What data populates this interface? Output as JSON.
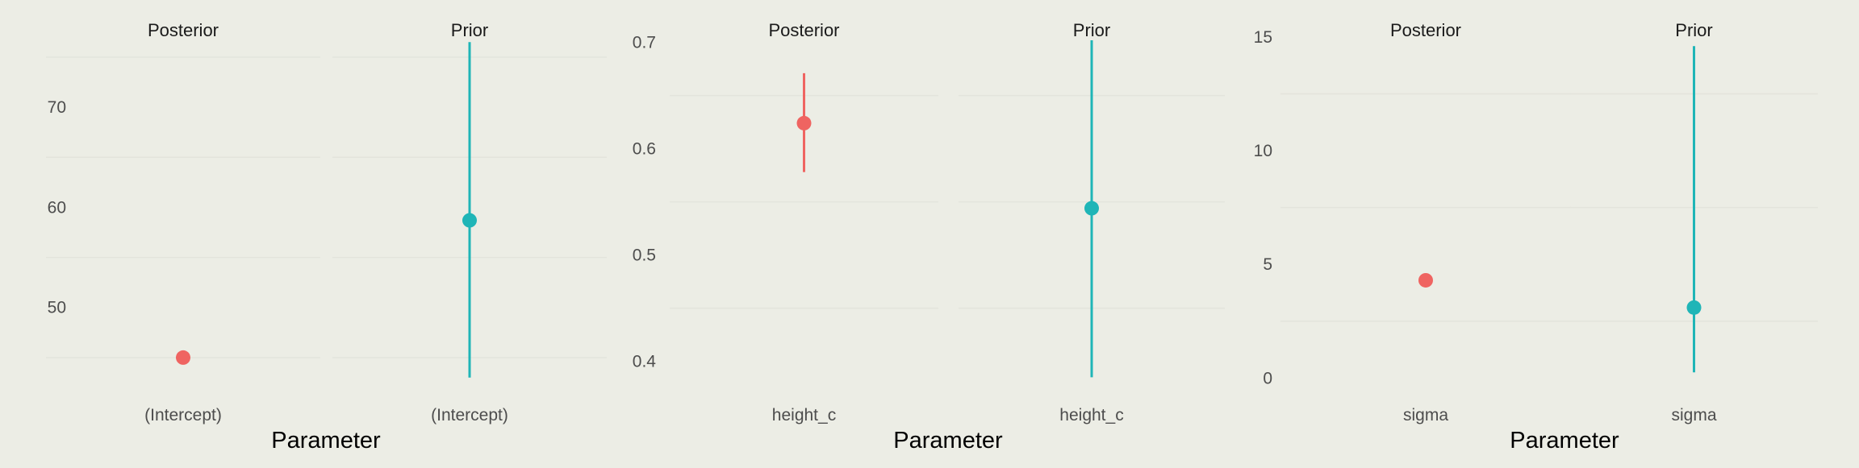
{
  "colors": {
    "background": "#ecede5",
    "grid": "#e3e4dc",
    "posterior": "#ef6461",
    "prior": "#1fb5b7"
  },
  "chart_data": [
    {
      "type": "pointrange",
      "xlabel": "Parameter",
      "ylim": [
        42.5,
        77
      ],
      "y_ticks": [
        50,
        60,
        70
      ],
      "facets": [
        {
          "strip": "Posterior",
          "category": "(Intercept)",
          "color_key": "posterior",
          "estimate": 45,
          "lower": 45,
          "upper": 45
        },
        {
          "strip": "Prior",
          "category": "(Intercept)",
          "color_key": "prior",
          "estimate": 58.7,
          "lower": 43,
          "upper": 76.5
        }
      ]
    },
    {
      "type": "pointrange",
      "xlabel": "Parameter",
      "ylim": [
        0.38,
        0.705
      ],
      "y_ticks": [
        0.4,
        0.5,
        0.6,
        0.7
      ],
      "facets": [
        {
          "strip": "Posterior",
          "category": "height_c",
          "color_key": "posterior",
          "estimate": 0.624,
          "lower": 0.578,
          "upper": 0.671
        },
        {
          "strip": "Prior",
          "category": "height_c",
          "color_key": "prior",
          "estimate": 0.544,
          "lower": 0.385,
          "upper": 0.702
        }
      ]
    },
    {
      "type": "pointrange",
      "xlabel": "Parameter",
      "ylim": [
        -0.2,
        15
      ],
      "y_ticks": [
        0,
        5,
        10,
        15
      ],
      "facets": [
        {
          "strip": "Posterior",
          "category": "sigma",
          "color_key": "posterior",
          "estimate": 4.3,
          "lower": 4.3,
          "upper": 4.3
        },
        {
          "strip": "Prior",
          "category": "sigma",
          "color_key": "prior",
          "estimate": 3.1,
          "lower": 0.25,
          "upper": 14.6
        }
      ]
    }
  ]
}
